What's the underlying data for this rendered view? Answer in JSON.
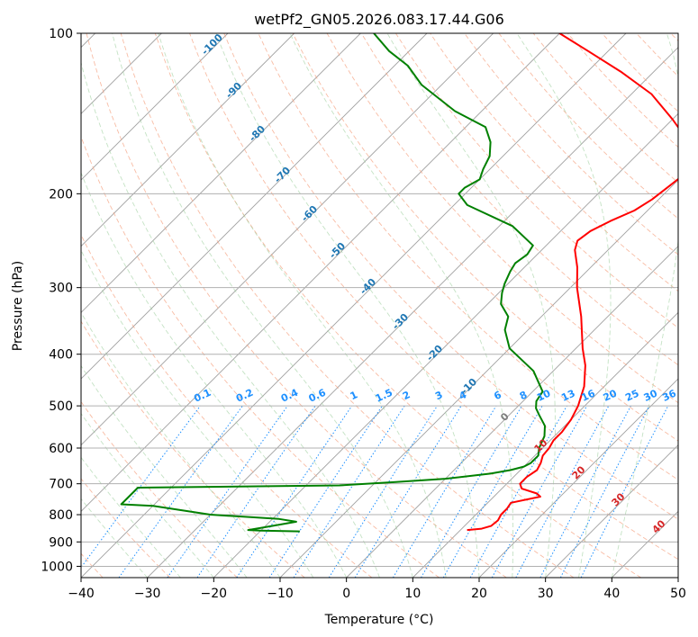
{
  "chart_data": {
    "type": "line",
    "title": "wetPf2_GN05.2026.083.17.44.G06",
    "xlabel": "Temperature (°C)",
    "ylabel": "Pressure (hPa)",
    "xlim": [
      -40,
      50
    ],
    "ylim": [
      1050,
      100
    ],
    "y_scale": "log",
    "grid": true,
    "x_ticks": [
      -40,
      -30,
      -20,
      -10,
      0,
      10,
      20,
      30,
      40,
      50
    ],
    "y_ticks": [
      100,
      200,
      300,
      400,
      500,
      600,
      700,
      800,
      900,
      1000
    ],
    "series": [
      {
        "role": "temperature",
        "color": "#ff0000",
        "points": [
          [
            11.0,
            855
          ],
          [
            13.0,
            850
          ],
          [
            14.0,
            840
          ],
          [
            14.2,
            820
          ],
          [
            13.8,
            800
          ],
          [
            13.8,
            780
          ],
          [
            13.5,
            760
          ],
          [
            17.0,
            740
          ],
          [
            16.0,
            730
          ],
          [
            13.0,
            715
          ],
          [
            12.0,
            700
          ],
          [
            12.0,
            680
          ],
          [
            12.5,
            660
          ],
          [
            12.0,
            640
          ],
          [
            11.2,
            620
          ],
          [
            11.0,
            600
          ],
          [
            10.5,
            580
          ],
          [
            10.5,
            560
          ],
          [
            10.0,
            530
          ],
          [
            9.0,
            500
          ],
          [
            7.0,
            460
          ],
          [
            4.0,
            420
          ],
          [
            1.0,
            390
          ],
          [
            -4.0,
            340
          ],
          [
            -9.0,
            300
          ],
          [
            -12.0,
            275
          ],
          [
            -15.0,
            255
          ],
          [
            -16.0,
            245
          ],
          [
            -15.5,
            235
          ],
          [
            -14.0,
            225
          ],
          [
            -12.0,
            215
          ],
          [
            -11.0,
            205
          ],
          [
            -10.5,
            195
          ],
          [
            -10.0,
            185
          ],
          [
            -11.0,
            175
          ],
          [
            -12.5,
            168
          ],
          [
            -16.0,
            155
          ],
          [
            -20.0,
            145
          ],
          [
            -27.0,
            130
          ],
          [
            -35.0,
            118
          ],
          [
            -43.0,
            108
          ],
          [
            -50.0,
            100
          ]
        ]
      },
      {
        "role": "dewpoint",
        "color": "#008000",
        "points": [
          [
            -14.0,
            860
          ],
          [
            -20.0,
            857
          ],
          [
            -22.0,
            855
          ],
          [
            -20.0,
            845
          ],
          [
            -16.0,
            825
          ],
          [
            -19.0,
            815
          ],
          [
            -30.0,
            800
          ],
          [
            -40.0,
            770
          ],
          [
            -45.0,
            765
          ],
          [
            -45.0,
            712
          ],
          [
            -15.0,
            705
          ],
          [
            -7.0,
            695
          ],
          [
            0.0,
            685
          ],
          [
            6.0,
            670
          ],
          [
            8.5,
            660
          ],
          [
            10.0,
            650
          ],
          [
            10.5,
            640
          ],
          [
            10.5,
            620
          ],
          [
            9.5,
            600
          ],
          [
            8.5,
            570
          ],
          [
            7.0,
            545
          ],
          [
            4.5,
            520
          ],
          [
            3.0,
            505
          ],
          [
            2.0,
            490
          ],
          [
            1.5,
            470
          ],
          [
            -3.0,
            430
          ],
          [
            -10.0,
            390
          ],
          [
            -13.5,
            360
          ],
          [
            -15.0,
            340
          ],
          [
            -18.0,
            322
          ],
          [
            -19.5,
            307
          ],
          [
            -20.5,
            295
          ],
          [
            -21.5,
            280
          ],
          [
            -22.0,
            270
          ],
          [
            -21.5,
            260
          ],
          [
            -22.0,
            250
          ],
          [
            -28.0,
            230
          ],
          [
            -38.0,
            210
          ],
          [
            -41.0,
            200
          ],
          [
            -41.0,
            195
          ],
          [
            -40.0,
            188
          ],
          [
            -41.0,
            180
          ],
          [
            -42.0,
            170
          ],
          [
            -44.0,
            160
          ],
          [
            -47.0,
            150
          ],
          [
            -54.0,
            140
          ],
          [
            -63.0,
            125
          ],
          [
            -68.0,
            115
          ],
          [
            -73.0,
            108
          ],
          [
            -78.0,
            100
          ]
        ]
      }
    ],
    "isotherm_labels": [
      "-100",
      "-90",
      "-80",
      "-70",
      "-60",
      "-50",
      "-40",
      "-30",
      "-20",
      "-10"
    ],
    "dry_adiabat_labels": [
      "0",
      "10",
      "20",
      "30",
      "40"
    ],
    "mixing_ratio_labels": [
      "0.1",
      "0.2",
      "0.4",
      "0.6",
      "1",
      "1.5",
      "2",
      "3",
      "4",
      "6",
      "8",
      "10",
      "13",
      "16",
      "20",
      "25",
      "30",
      "36"
    ],
    "colors": {
      "temperature": "#ff0000",
      "dewpoint": "#008000",
      "isotherm_label": "#1f77b4",
      "mixing_ratio_label": "#1e90ff",
      "dry_adiabat_label": "#d62728",
      "zero_label": "#808080"
    }
  }
}
